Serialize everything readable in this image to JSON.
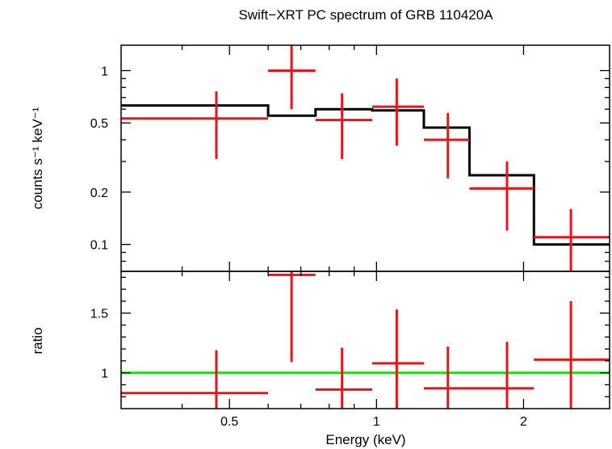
{
  "chart_data": [
    {
      "type": "step",
      "panel": "spectrum",
      "title": "Swift−XRT PC spectrum of GRB 110420A",
      "xlabel": "Energy (keV)",
      "ylabel": "counts s⁻¹ keV⁻¹",
      "xscale": "log",
      "yscale": "log",
      "xlim": [
        0.3,
        3.0
      ],
      "ylim": [
        0.07,
        1.4
      ],
      "xticks": [
        {
          "value": 0.5,
          "label": "0.5"
        },
        {
          "value": 1,
          "label": "1"
        },
        {
          "value": 2,
          "label": "2"
        }
      ],
      "yticks": [
        {
          "value": 0.1,
          "label": "0.1"
        },
        {
          "value": 0.2,
          "label": "0.2"
        },
        {
          "value": 0.5,
          "label": "0.5"
        },
        {
          "value": 1,
          "label": "1"
        }
      ],
      "data_color": "#e8141a",
      "model_color": "#000000",
      "data": [
        {
          "x": 0.47,
          "xlo": 0.3,
          "xhi": 0.6,
          "y": 0.53,
          "ylo": 0.31,
          "yhi": 0.76
        },
        {
          "x": 0.67,
          "xlo": 0.6,
          "xhi": 0.75,
          "y": 1.0,
          "ylo": 0.6,
          "yhi": 1.45
        },
        {
          "x": 0.85,
          "xlo": 0.75,
          "xhi": 0.98,
          "y": 0.52,
          "ylo": 0.31,
          "yhi": 0.74
        },
        {
          "x": 1.1,
          "xlo": 0.98,
          "xhi": 1.25,
          "y": 0.62,
          "ylo": 0.37,
          "yhi": 0.9
        },
        {
          "x": 1.4,
          "xlo": 1.25,
          "xhi": 1.55,
          "y": 0.4,
          "ylo": 0.24,
          "yhi": 0.57
        },
        {
          "x": 1.85,
          "xlo": 1.55,
          "xhi": 2.1,
          "y": 0.21,
          "ylo": 0.12,
          "yhi": 0.3
        },
        {
          "x": 2.5,
          "xlo": 2.1,
          "xhi": 3.0,
          "y": 0.11,
          "ylo": 0.065,
          "yhi": 0.16
        }
      ],
      "model": [
        {
          "xlo": 0.3,
          "xhi": 0.6,
          "y": 0.63
        },
        {
          "xlo": 0.6,
          "xhi": 0.75,
          "y": 0.55
        },
        {
          "xlo": 0.75,
          "xhi": 0.98,
          "y": 0.6
        },
        {
          "xlo": 0.98,
          "xhi": 1.25,
          "y": 0.59
        },
        {
          "xlo": 1.25,
          "xhi": 1.55,
          "y": 0.47
        },
        {
          "xlo": 1.55,
          "xhi": 2.1,
          "y": 0.25
        },
        {
          "xlo": 2.1,
          "xhi": 3.0,
          "y": 0.1
        }
      ]
    },
    {
      "type": "scatter",
      "panel": "ratio",
      "xlabel": "Energy (keV)",
      "ylabel": "ratio",
      "xscale": "log",
      "yscale": "linear",
      "xlim": [
        0.3,
        3.0
      ],
      "ylim": [
        0.7,
        1.85
      ],
      "yticks": [
        {
          "value": 1,
          "label": "1"
        },
        {
          "value": 1.5,
          "label": "1.5"
        }
      ],
      "reference_line": {
        "y": 1,
        "color": "#22dd22"
      },
      "data_color": "#e8141a",
      "data": [
        {
          "x": 0.47,
          "xlo": 0.3,
          "xhi": 0.6,
          "y": 0.83,
          "ylo": 0.6,
          "yhi": 1.19
        },
        {
          "x": 0.67,
          "xlo": 0.6,
          "xhi": 0.75,
          "y": 1.82,
          "ylo": 1.09,
          "yhi": 2.2
        },
        {
          "x": 0.85,
          "xlo": 0.75,
          "xhi": 0.98,
          "y": 0.86,
          "ylo": 0.6,
          "yhi": 1.21
        },
        {
          "x": 1.1,
          "xlo": 0.98,
          "xhi": 1.25,
          "y": 1.08,
          "ylo": 0.65,
          "yhi": 1.53
        },
        {
          "x": 1.4,
          "xlo": 1.25,
          "xhi": 1.55,
          "y": 0.87,
          "ylo": 0.6,
          "yhi": 1.22
        },
        {
          "x": 1.85,
          "xlo": 1.55,
          "xhi": 2.1,
          "y": 0.87,
          "ylo": 0.6,
          "yhi": 1.26
        },
        {
          "x": 2.5,
          "xlo": 2.1,
          "xhi": 3.0,
          "y": 1.11,
          "ylo": 0.6,
          "yhi": 1.6
        }
      ]
    }
  ]
}
